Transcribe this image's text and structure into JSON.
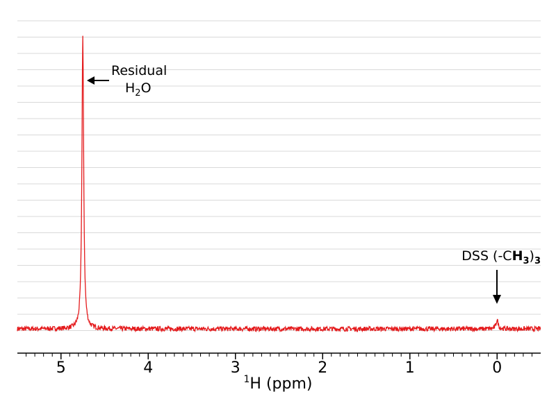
{
  "chart_data": {
    "type": "line",
    "title": "",
    "xlabel": {
      "sup": "1",
      "main": "H (ppm)"
    },
    "ylabel": "",
    "x_reversed": true,
    "xlim": [
      5.5,
      -0.5
    ],
    "ylim": [
      -0.03,
      1.0
    ],
    "x_ticks": [
      5,
      4,
      3,
      2,
      1,
      0
    ],
    "x_tick_labels": [
      "5",
      "4",
      "3",
      "2",
      "1",
      "0"
    ],
    "grid": true,
    "series_color": "#e41a1c",
    "peaks": [
      {
        "ppm": 4.75,
        "height": 1.0,
        "width": 0.012,
        "label": "Residual H2O"
      },
      {
        "ppm": 0.0,
        "height": 0.03,
        "width": 0.015,
        "label": "DSS (-CH3)3"
      }
    ],
    "baseline": 0.0,
    "noise_amplitude": 0.008
  },
  "annotations": {
    "water_line1": "Residual",
    "water_h": "H",
    "water_sub": "2",
    "water_o": "O",
    "dss_prefix": "DSS (-C",
    "dss_h": "H",
    "dss_sub_inner": "3",
    "dss_close": ")",
    "dss_sub_outer": "3"
  }
}
